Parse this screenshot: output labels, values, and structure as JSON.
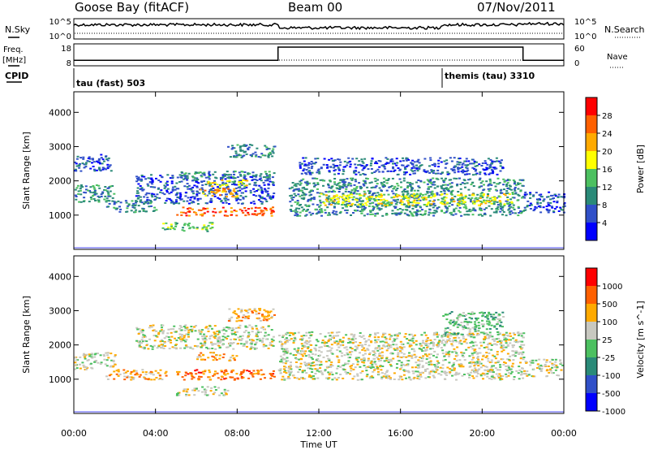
{
  "header": {
    "station": "Goose Bay (fitACF)",
    "beam": "Beam 00",
    "date": "07/Nov/2011"
  },
  "strip_labels": {
    "nsky": "N.Sky",
    "nsearch": "N.Search",
    "freq_line1": "Freq.",
    "freq_line2": "[MHz]",
    "nave": "Nave",
    "cpid": "CPID"
  },
  "noise_axis": {
    "left_top": "10^5",
    "left_bottom": "10^0",
    "right_top": "10^5",
    "right_bottom": "10^0"
  },
  "freq_axis": {
    "left_top": "18",
    "left_bottom": "8",
    "right_top": "60",
    "right_bottom": "0"
  },
  "cpid_labels": [
    {
      "text": "tau (fast) 503",
      "start_hour": 0
    },
    {
      "text": "themis (tau) 3310",
      "start_hour": 18.05
    }
  ],
  "chart_data": {
    "type": "heatmap",
    "x_axis": {
      "label": "Time UT",
      "range_hours": [
        0,
        24
      ],
      "ticks": [
        "00:00",
        "04:00",
        "08:00",
        "12:00",
        "16:00",
        "20:00",
        "00:00"
      ]
    },
    "y_axis": {
      "label": "Slant Range [km]",
      "range_km": [
        0,
        4600
      ],
      "ticks": [
        1000,
        2000,
        3000,
        4000
      ]
    },
    "freq_step": {
      "hours": [
        0,
        10,
        10,
        22,
        22,
        24
      ],
      "nave_level": [
        0.25,
        0.25,
        0.85,
        0.85,
        0.25,
        0.25
      ]
    },
    "power_panel": {
      "colorbar_label": "Power [dB]",
      "colorbar_ticks": [
        "4",
        "8",
        "12",
        "16",
        "20",
        "24",
        "28"
      ],
      "colors": [
        "#0000ff",
        "#3050c8",
        "#2a8a78",
        "#4cc060",
        "#ffff00",
        "#ffaa00",
        "#ff6000",
        "#ff0000"
      ],
      "regions": [
        {
          "h0": 0.0,
          "h1": 2.0,
          "r0": 1400,
          "r1": 1900,
          "level": 2
        },
        {
          "h0": 0.0,
          "h1": 1.8,
          "r0": 2300,
          "r1": 2800,
          "level": 1
        },
        {
          "h0": 1.5,
          "h1": 4.0,
          "r0": 1100,
          "r1": 1450,
          "level": 2
        },
        {
          "h0": 3.0,
          "h1": 9.8,
          "r0": 1350,
          "r1": 2200,
          "level": 1
        },
        {
          "h0": 5.0,
          "h1": 9.8,
          "r0": 1000,
          "r1": 1250,
          "level": 6
        },
        {
          "h0": 6.0,
          "h1": 8.0,
          "r0": 1550,
          "r1": 1800,
          "level": 5
        },
        {
          "h0": 6.5,
          "h1": 8.5,
          "r0": 1850,
          "r1": 2050,
          "level": 4
        },
        {
          "h0": 4.3,
          "h1": 6.8,
          "r0": 550,
          "r1": 800,
          "level": 3
        },
        {
          "h0": 5.0,
          "h1": 9.8,
          "r0": 2100,
          "r1": 2300,
          "level": 2
        },
        {
          "h0": 7.5,
          "h1": 9.8,
          "r0": 2700,
          "r1": 3100,
          "level": 2
        },
        {
          "h0": 10.5,
          "h1": 22.0,
          "r0": 1000,
          "r1": 2100,
          "level": 2
        },
        {
          "h0": 12.0,
          "h1": 21.5,
          "r0": 1300,
          "r1": 1650,
          "level": 4
        },
        {
          "h0": 11.0,
          "h1": 21.0,
          "r0": 2200,
          "r1": 2700,
          "level": 1
        },
        {
          "h0": 22.0,
          "h1": 24.0,
          "r0": 1100,
          "r1": 1700,
          "level": 1
        }
      ]
    },
    "velocity_panel": {
      "colorbar_label": "Velocity [m s^-1]",
      "colorbar_ticks": [
        "1000",
        "500",
        "100",
        "25",
        "-25",
        "-100",
        "-500",
        "-1000"
      ],
      "colors": [
        "#0000ff",
        "#3050c8",
        "#2a8a78",
        "#4cc060",
        "#c8c8c0",
        "#ffaa00",
        "#ff6000",
        "#ff0000"
      ],
      "regions": [
        {
          "h0": 0.0,
          "h1": 2.0,
          "r0": 1300,
          "r1": 1800,
          "level": 4
        },
        {
          "h0": 1.5,
          "h1": 4.5,
          "r0": 1000,
          "r1": 1300,
          "level": 5
        },
        {
          "h0": 3.0,
          "h1": 9.8,
          "r0": 1900,
          "r1": 2600,
          "level": 4
        },
        {
          "h0": 5.0,
          "h1": 9.8,
          "r0": 1000,
          "r1": 1300,
          "level": 6
        },
        {
          "h0": 6.0,
          "h1": 8.0,
          "r0": 1550,
          "r1": 1800,
          "level": 5
        },
        {
          "h0": 5.0,
          "h1": 7.5,
          "r0": 550,
          "r1": 800,
          "level": 4
        },
        {
          "h0": 7.5,
          "h1": 9.8,
          "r0": 2700,
          "r1": 3100,
          "level": 5
        },
        {
          "h0": 10.0,
          "h1": 22.0,
          "r0": 1000,
          "r1": 2400,
          "level": 4
        },
        {
          "h0": 18.0,
          "h1": 21.0,
          "r0": 2300,
          "r1": 3000,
          "level": 3
        },
        {
          "h0": 22.0,
          "h1": 24.0,
          "r0": 1100,
          "r1": 1600,
          "level": 4
        }
      ]
    }
  }
}
